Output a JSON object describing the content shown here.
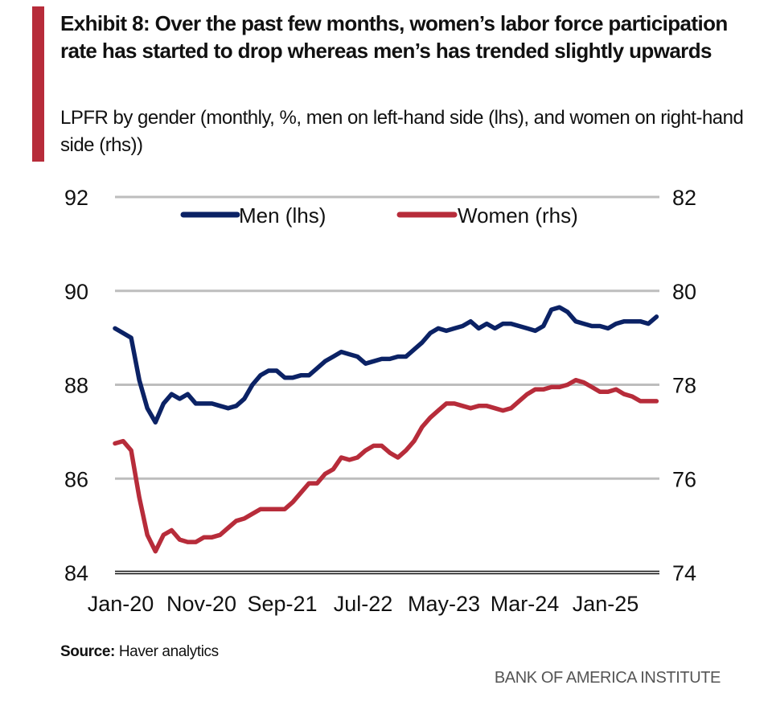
{
  "title": "Exhibit 8: Over the past few months, women’s labor force participation rate has started to drop whereas men’s has trended slightly upwards",
  "subtitle": "LPFR by gender (monthly, %, men on left-hand side (lhs), and women on right-hand side (rhs))",
  "source_label": "Source:",
  "source_text": "Haver analytics",
  "brand": "BANK OF AMERICA INSTITUTE",
  "colors": {
    "accent": "#b72c3a",
    "men": "#0b2265",
    "women": "#b72c3a",
    "grid": "#bdbdbd",
    "axis": "#111111"
  },
  "chart_data": {
    "type": "line",
    "title": "LPFR by gender",
    "xlabel": "",
    "ylabel_left": "Men (lhs)",
    "ylabel_right": "Women (rhs)",
    "x_start": "Jan-20",
    "x_end": "Aug-25",
    "frequency": "monthly",
    "x_tick_labels": [
      "Jan-20",
      "Nov-20",
      "Sep-21",
      "Jul-22",
      "May-23",
      "Mar-24",
      "Jan-25"
    ],
    "x_tick_index": [
      0,
      10,
      20,
      30,
      40,
      50,
      60
    ],
    "ylim_left": [
      84,
      92
    ],
    "yticks_left": [
      84,
      86,
      88,
      90,
      92
    ],
    "ylim_right": [
      74,
      82
    ],
    "yticks_right": [
      74,
      76,
      78,
      80,
      82
    ],
    "grid": true,
    "legend_position": "top-center",
    "series": [
      {
        "name": "Men (lhs)",
        "axis": "left",
        "values": [
          89.2,
          89.1,
          89.0,
          88.1,
          87.5,
          87.2,
          87.6,
          87.8,
          87.7,
          87.8,
          87.6,
          87.6,
          87.6,
          87.55,
          87.5,
          87.55,
          87.7,
          88.0,
          88.2,
          88.3,
          88.3,
          88.15,
          88.15,
          88.2,
          88.2,
          88.35,
          88.5,
          88.6,
          88.7,
          88.65,
          88.6,
          88.45,
          88.5,
          88.55,
          88.55,
          88.6,
          88.6,
          88.75,
          88.9,
          89.1,
          89.2,
          89.15,
          89.2,
          89.25,
          89.35,
          89.2,
          89.3,
          89.2,
          89.3,
          89.3,
          89.25,
          89.2,
          89.15,
          89.25,
          89.6,
          89.65,
          89.55,
          89.35,
          89.3,
          89.25,
          89.25,
          89.2,
          89.3,
          89.35,
          89.35,
          89.35,
          89.3,
          89.45
        ]
      },
      {
        "name": "Women (rhs)",
        "axis": "right",
        "values": [
          76.75,
          76.8,
          76.6,
          75.6,
          74.8,
          74.45,
          74.8,
          74.9,
          74.7,
          74.65,
          74.65,
          74.75,
          74.75,
          74.8,
          74.95,
          75.1,
          75.15,
          75.25,
          75.35,
          75.35,
          75.35,
          75.35,
          75.5,
          75.7,
          75.9,
          75.9,
          76.1,
          76.2,
          76.45,
          76.4,
          76.45,
          76.6,
          76.7,
          76.7,
          76.55,
          76.45,
          76.6,
          76.8,
          77.1,
          77.3,
          77.45,
          77.6,
          77.6,
          77.55,
          77.5,
          77.55,
          77.55,
          77.5,
          77.45,
          77.5,
          77.65,
          77.8,
          77.9,
          77.9,
          77.95,
          77.95,
          78.0,
          78.1,
          78.05,
          77.95,
          77.85,
          77.85,
          77.9,
          77.8,
          77.75,
          77.65,
          77.65,
          77.65
        ]
      }
    ]
  }
}
